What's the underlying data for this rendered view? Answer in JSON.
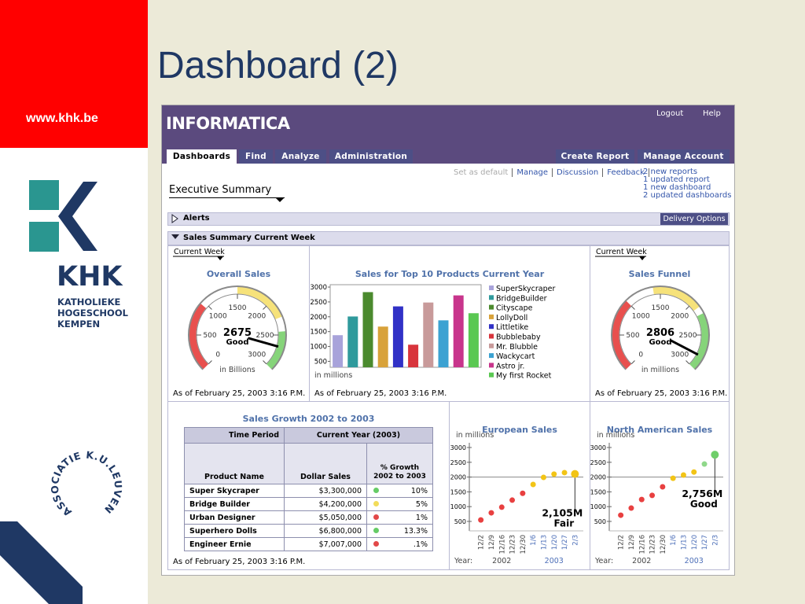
{
  "slide": {
    "title": "Dashboard (2)",
    "url": "www.khk.be",
    "logo": {
      "name": "KHK",
      "lines": [
        "KATHOLIEKE",
        "HOGESCHOOL",
        "KEMPEN"
      ]
    },
    "association": "ASSOCIATIE K.U.LEUVEN"
  },
  "app": {
    "brand": "INFORMATICA",
    "top_links": [
      "Logout",
      "Help"
    ],
    "tabs": [
      "Dashboards",
      "Find",
      "Analyze",
      "Administration"
    ],
    "right_tabs": [
      "Create Report",
      "Manage Account"
    ],
    "links": [
      "Set as default",
      "Manage",
      "Discussion",
      "Feedback"
    ],
    "notices": [
      "2 new reports",
      "1 updated report",
      "1 new dashboard",
      "2 updated dashboards"
    ],
    "page_title": "Executive Summary",
    "alerts": "Alerts",
    "delivery_button": "Delivery Options",
    "summary": "Sales Summary Current Week"
  },
  "table": {
    "title": "Sales Growth 2002 to 2003",
    "header": [
      "Time Period",
      "Current Year (2003)"
    ],
    "columns": [
      "Product Name",
      "Dollar Sales",
      "% Growth 2002 to 2003"
    ],
    "rows": [
      [
        "Super Skycraper",
        "$3,300,000",
        "10%"
      ],
      [
        "Bridge Builder",
        "$4,200,000",
        "5%"
      ],
      [
        "Urban Designer",
        "$5,050,000",
        "1%"
      ],
      [
        "Superhero Dolls",
        "$6,800,000",
        "13.3%"
      ],
      [
        "Engineer Ernie",
        "$7,007,000",
        ".1%"
      ]
    ],
    "status_colors": [
      "#66cc66",
      "#f2dc5a",
      "#e24848",
      "#66cc66",
      "#e24848"
    ],
    "timestamp": "As of February 25, 2003 3:16 P.M."
  },
  "chart_data": [
    {
      "type": "gauge",
      "title": "Overall Sales",
      "filter": "Current Week",
      "value": 2675,
      "status": "Good",
      "unit": "in Billions",
      "ylim": [
        0,
        3000
      ],
      "yticks": [
        0,
        500,
        1000,
        1500,
        2000,
        2500,
        3000
      ],
      "bands": [
        {
          "from": 0,
          "to": 950,
          "color": "#e8504e"
        },
        {
          "from": 1500,
          "to": 2250,
          "color": "#f6e27a"
        },
        {
          "from": 2450,
          "to": 3000,
          "color": "#86d47a"
        }
      ],
      "timestamp": "As of February 25, 2003 3:16 P.M."
    },
    {
      "type": "bar",
      "title": "Sales for Top 10 Products Current Year",
      "ylabel": "in millions",
      "categories": [
        "SuperSkycraper",
        "BridgeBuilder",
        "Cityscape",
        "LollyDoll",
        "Littletike",
        "Bubblebaby",
        "Mr. Blubble",
        "Wackycart",
        "Astro jr.",
        "My first Rocket"
      ],
      "values": [
        1380,
        2010,
        2830,
        1670,
        2350,
        1060,
        2480,
        1880,
        2720,
        2120
      ],
      "colors": [
        "#a8a3da",
        "#2f9a9c",
        "#4b8a2e",
        "#d8a23a",
        "#3131c6",
        "#d8343c",
        "#c89a9a",
        "#3ca2d2",
        "#c8358c",
        "#5ac852"
      ],
      "ylim": [
        300,
        3080
      ],
      "yticks": [
        500,
        1000,
        1500,
        2000,
        2500,
        3000
      ],
      "timestamp": "As of February 25, 2003 3:16 P.M."
    },
    {
      "type": "gauge",
      "title": "Sales Funnel",
      "filter": "Current Week",
      "value": 2806,
      "status": "Good",
      "unit": "in millions",
      "ylim": [
        0,
        3000
      ],
      "yticks": [
        0,
        500,
        1000,
        1500,
        2000,
        2500,
        3000
      ],
      "bands": [
        {
          "from": 0,
          "to": 1000,
          "color": "#e8504e"
        },
        {
          "from": 1400,
          "to": 2100,
          "color": "#f6e27a"
        },
        {
          "from": 2200,
          "to": 3000,
          "color": "#86d47a"
        }
      ],
      "timestamp": "As of February 25, 2003 3:16 P.M."
    },
    {
      "type": "dot",
      "title": "European Sales",
      "ylabel": "in millions",
      "xlabel": "Year:",
      "categories": [
        "12/2",
        "12/9",
        "12/16",
        "12/23",
        "12/30",
        "1/6",
        "1/13",
        "1/20",
        "1/27",
        "2/3"
      ],
      "values": [
        550,
        790,
        980,
        1220,
        1450,
        1750,
        1990,
        2100,
        2150,
        2105
      ],
      "value_labels": [
        null,
        null,
        null,
        null,
        null,
        null,
        null,
        null,
        null,
        "2,105M"
      ],
      "status": "Fair",
      "colors": [
        "#e84040",
        "#e84040",
        "#e84040",
        "#e84040",
        "#e84040",
        "#f2c416",
        "#f2c416",
        "#f2c416",
        "#f2c416",
        "#f2c416"
      ],
      "year_groups": [
        {
          "label": "2002",
          "count": 5,
          "color": "#444444"
        },
        {
          "label": "2003",
          "count": 5,
          "color": "#4d6fb8"
        }
      ],
      "ylim": [
        180,
        3160
      ],
      "yticks": [
        500,
        1000,
        1500,
        2000,
        2500,
        3000
      ],
      "reference_line": 2000
    },
    {
      "type": "dot",
      "title": "North American Sales",
      "ylabel": "in millions",
      "xlabel": "Year:",
      "categories": [
        "12/2",
        "12/9",
        "12/16",
        "12/23",
        "12/30",
        "1/6",
        "1/13",
        "1/20",
        "1/27",
        "2/3"
      ],
      "values": [
        710,
        950,
        1240,
        1380,
        1670,
        1960,
        2070,
        2170,
        2440,
        2756
      ],
      "value_labels": [
        null,
        null,
        null,
        null,
        null,
        null,
        null,
        null,
        null,
        "2,756M"
      ],
      "status": "Good",
      "colors": [
        "#e84040",
        "#e84040",
        "#e84040",
        "#e84040",
        "#e84040",
        "#f2c416",
        "#f2c416",
        "#f2c416",
        "#8fd88a",
        "#6fce6a"
      ],
      "year_groups": [
        {
          "label": "2002",
          "count": 5,
          "color": "#444444"
        },
        {
          "label": "2003",
          "count": 5,
          "color": "#4d6fb8"
        }
      ],
      "ylim": [
        180,
        3160
      ],
      "yticks": [
        500,
        1000,
        1500,
        2000,
        2500,
        3000
      ],
      "reference_line": 2000
    }
  ]
}
